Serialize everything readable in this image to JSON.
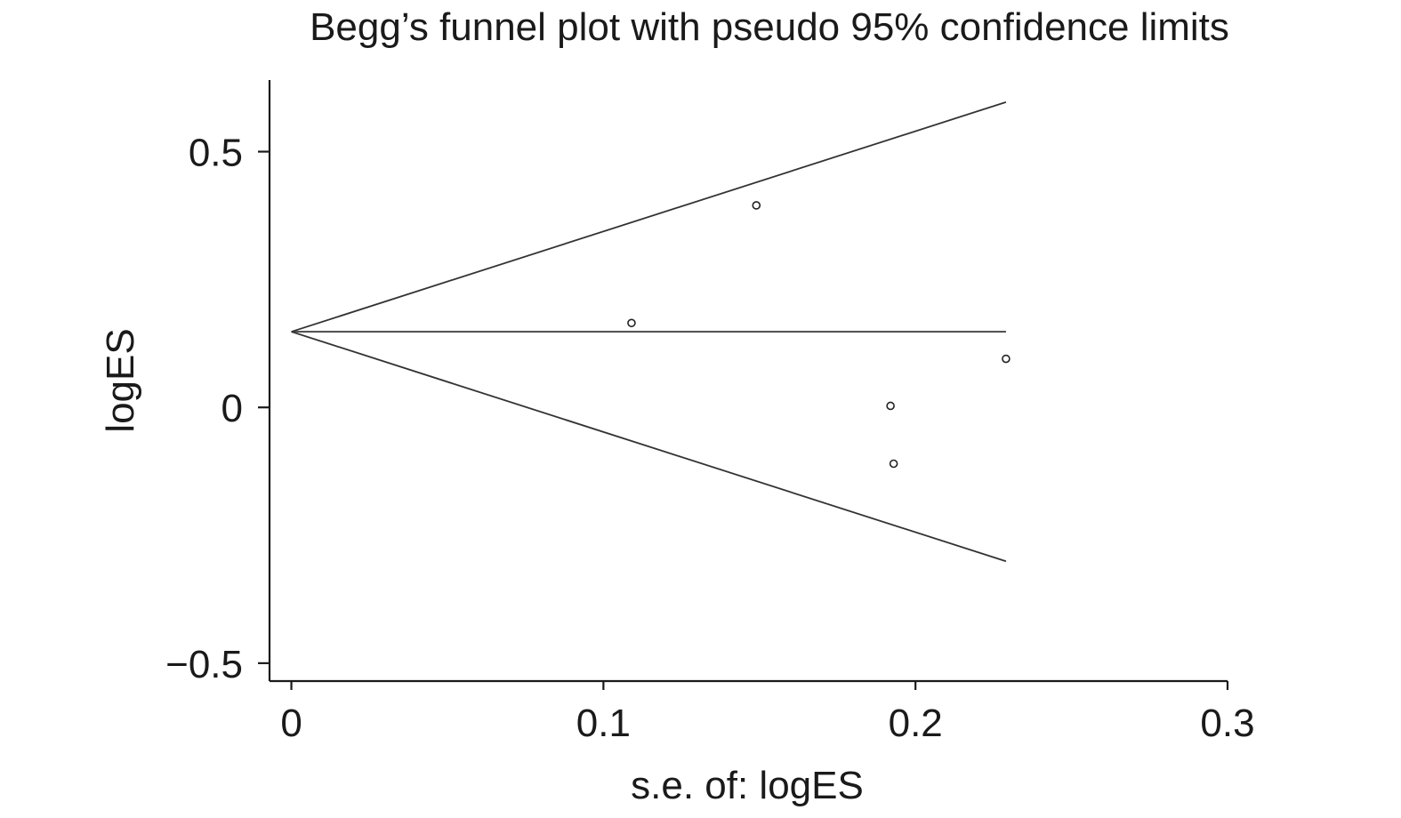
{
  "chart_data": {
    "type": "scatter",
    "title": "Begg’s funnel plot with pseudo 95% confidence limits",
    "xlabel": "s.e. of: logES",
    "ylabel": "logES",
    "xlim": [
      -0.007,
      0.3
    ],
    "ylim": [
      -0.535,
      0.64
    ],
    "x_ticks": [
      0,
      0.1,
      0.2,
      0.3
    ],
    "x_tick_labels": [
      "0",
      "0.1",
      "0.2",
      "0.3"
    ],
    "y_ticks": [
      -0.5,
      0,
      0.5
    ],
    "y_tick_labels": [
      "−0.5",
      "0",
      "0.5"
    ],
    "grid": false,
    "legend": "none",
    "pooled_estimate": 0.148,
    "max_se": 0.229,
    "ci_multiplier": 1.96,
    "series": [
      {
        "points": [
          {
            "x": 0.109,
            "y": 0.165
          },
          {
            "x": 0.149,
            "y": 0.395
          },
          {
            "x": 0.192,
            "y": 0.003
          },
          {
            "x": 0.193,
            "y": -0.11
          },
          {
            "x": 0.229,
            "y": 0.095
          }
        ]
      }
    ]
  }
}
